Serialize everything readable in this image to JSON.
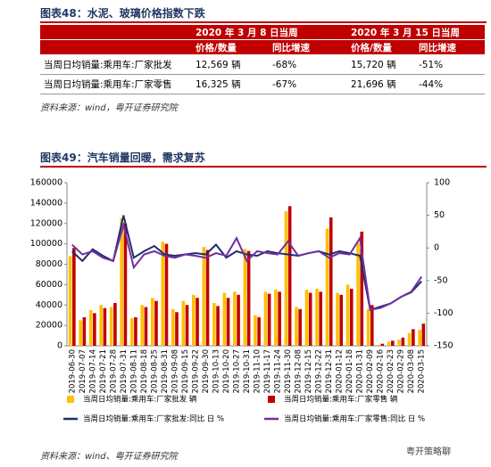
{
  "table": {
    "title": "图表48：水泥、玻璃价格指数下跌",
    "header": [
      "2020 年 3 月 8 日当周",
      "2020 年 3 月 15 日当周"
    ],
    "subheader": [
      "价格/数量",
      "同比增速",
      "价格/数量",
      "同比增速"
    ],
    "rows": [
      [
        "当周日均销量:乘用车:厂家批发",
        "12,569 辆",
        "-68%",
        "15,720 辆",
        "-51%"
      ],
      [
        "当周日均销量:乘用车:厂家零售",
        "16,325 辆",
        "-67%",
        "21,696 辆",
        "-44%"
      ]
    ],
    "source": "资料来源：wind，粤开证券研究院"
  },
  "chart_data": {
    "type": "bar-line",
    "title": "图表49：汽车销量回暖，需求复苏",
    "categories": [
      "2019-06-30",
      "2019-07-07",
      "2019-07-14",
      "2019-07-21",
      "2019-07-28",
      "2019-07-31",
      "2019-08-11",
      "2019-08-18",
      "2019-08-25",
      "2019-08-31",
      "2019-09-08",
      "2019-09-15",
      "2019-09-22",
      "2019-09-30",
      "2019-10-13",
      "2019-10-20",
      "2019-10-27",
      "2019-10-31",
      "2019-11-10",
      "2019-11-17",
      "2019-11-24",
      "2019-11-30",
      "2019-12-08",
      "2019-12-15",
      "2019-12-22",
      "2019-12-31",
      "2020-01-12",
      "2020-01-18",
      "2020-01-31",
      "2020-02-09",
      "2020-02-16",
      "2020-02-23",
      "2020-02-29",
      "2020-03-08",
      "2020-03-15"
    ],
    "series": [
      {
        "name": "当周日均销量:乘用车:厂家批发 辆",
        "color": "#ffc000",
        "kind": "bar",
        "values": [
          88000,
          25000,
          35000,
          40000,
          38000,
          125000,
          27000,
          40000,
          47000,
          102000,
          36000,
          44000,
          50000,
          97000,
          42000,
          52000,
          53000,
          95000,
          30000,
          53000,
          55000,
          132000,
          38000,
          55000,
          56000,
          115000,
          52000,
          60000,
          101000,
          36000,
          1000,
          4000,
          6000,
          12569,
          15720
        ]
      },
      {
        "name": "当周日均销量:乘用车:厂家零售 辆",
        "color": "#c00000",
        "kind": "bar",
        "values": [
          96000,
          28000,
          32000,
          37000,
          42000,
          120000,
          28000,
          38000,
          44000,
          100000,
          33000,
          40000,
          47000,
          94000,
          39000,
          47000,
          50000,
          93000,
          28000,
          51000,
          53000,
          137000,
          36000,
          52000,
          53000,
          126000,
          50000,
          56000,
          112000,
          40000,
          2000,
          5000,
          8000,
          16325,
          21696
        ]
      },
      {
        "name": "当周日均销量:乘用车:厂家批发:同比 日 %",
        "color": "#1f2d6b",
        "kind": "line",
        "axis": "y2",
        "values": [
          -5,
          -20,
          -2,
          -12,
          -20,
          50,
          -15,
          -5,
          3,
          -10,
          -12,
          -10,
          -8,
          -10,
          5,
          -15,
          -5,
          -10,
          -12,
          -5,
          -8,
          -10,
          -12,
          -8,
          -5,
          -10,
          -5,
          -8,
          -12,
          -95,
          -90,
          -85,
          -75,
          -68,
          -51
        ]
      },
      {
        "name": "当周日均销量:乘用车:厂家零售:同比 日 %",
        "color": "#7030a0",
        "kind": "line",
        "axis": "y2",
        "values": [
          5,
          -10,
          -5,
          -15,
          -20,
          35,
          -30,
          -10,
          -5,
          -12,
          -15,
          -10,
          -12,
          -15,
          -8,
          -12,
          15,
          -20,
          -5,
          -8,
          -10,
          10,
          -12,
          -8,
          -5,
          -15,
          -8,
          -10,
          15,
          -95,
          -92,
          -85,
          -75,
          -67,
          -44
        ]
      }
    ],
    "ylim": [
      0,
      160000
    ],
    "yticks": [
      0,
      20000,
      40000,
      60000,
      80000,
      100000,
      120000,
      140000,
      160000
    ],
    "y2lim": [
      -150,
      100
    ],
    "y2ticks": [
      -150,
      -100,
      -50,
      0,
      50,
      100
    ],
    "source": "资料来源：wind、粤开证券研究院",
    "watermark": "粤开策略聊"
  }
}
